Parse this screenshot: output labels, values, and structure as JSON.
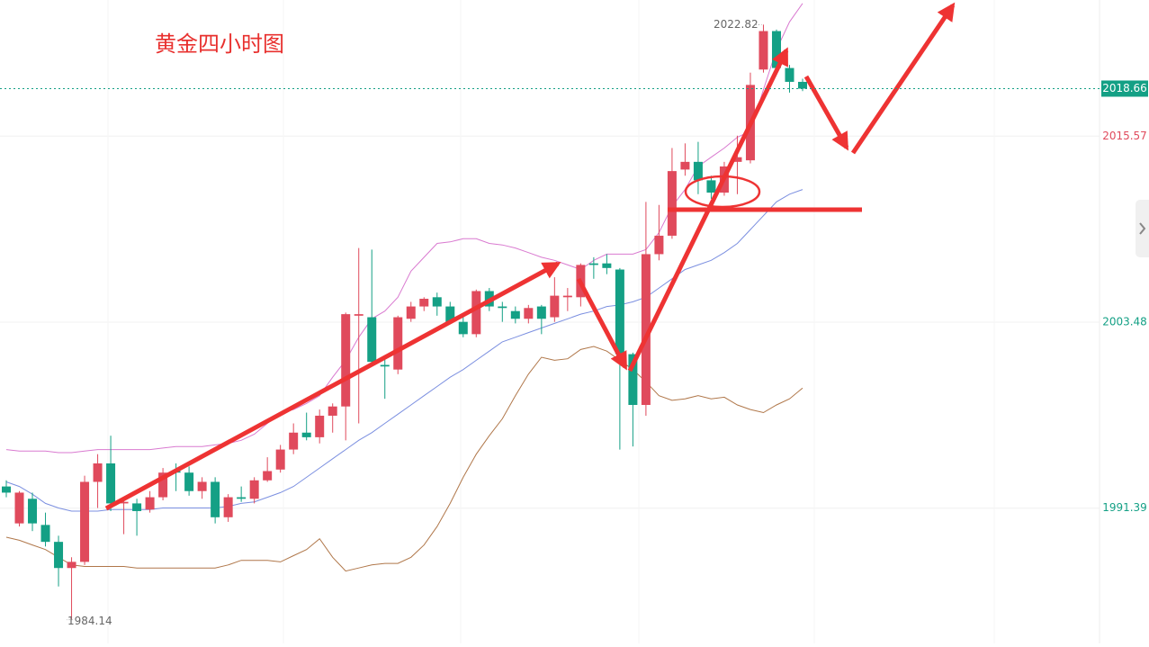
{
  "chart_data": {
    "type": "candlestick",
    "title": "黄金四小时图",
    "open": [
      1992.8,
      1990.4,
      1992.0,
      1990.3,
      1989.2,
      1987.5,
      1987.9,
      1993.1,
      1994.3,
      1991.7,
      1991.7,
      1991.3,
      1992.1,
      1993.8,
      1993.7,
      1992.5,
      1993.1,
      1990.8,
      1992.1,
      1992.0,
      1993.2,
      1993.9,
      1995.2,
      1996.3,
      1996.0,
      1997.4,
      1998.0,
      2003.9,
      2003.8,
      2000.7,
      2000.4,
      2003.7,
      2004.5,
      2005.1,
      2004.5,
      2003.5,
      2002.7,
      2005.5,
      2004.5,
      2004.2,
      2003.7,
      2004.5,
      2003.8,
      2005.1,
      2005.1,
      2007.3,
      2007.3,
      2006.9,
      2001.4,
      1998.1,
      2007.9,
      2009.1,
      2013.4,
      2013.9,
      2012.7,
      2011.9,
      2013.9,
      2014.0,
      2019.9,
      2022.4,
      2020.0,
      2019.1
    ],
    "high": [
      1993.2,
      1992.5,
      1992.4,
      1991.1,
      1989.6,
      1988.2,
      1993.5,
      1994.9,
      1996.1,
      1992.1,
      1992.0,
      1992.5,
      1994.0,
      1994.3,
      1994.1,
      1993.4,
      1993.4,
      1992.3,
      1992.8,
      1993.4,
      1994.7,
      1995.5,
      1996.9,
      1997.6,
      1997.8,
      1998.2,
      2004.1,
      2008.3,
      2008.2,
      2001.3,
      2003.9,
      2004.8,
      2005.1,
      2005.4,
      2004.8,
      2004.0,
      2005.6,
      2005.7,
      2004.8,
      2004.5,
      2004.6,
      2004.6,
      2006.4,
      2005.7,
      2007.3,
      2007.7,
      2007.9,
      2007.0,
      2001.5,
      2011.3,
      2011.1,
      2014.8,
      2015.1,
      2015.2,
      2013.0,
      2013.9,
      2015.6,
      2019.7,
      2022.82,
      2022.5,
      2020.2,
      2019.3
    ],
    "low": [
      1992.1,
      1990.2,
      1989.9,
      1988.9,
      1986.3,
      1984.14,
      1987.7,
      1991.4,
      1991.2,
      1989.7,
      1989.6,
      1991.1,
      1991.9,
      1992.5,
      1992.2,
      1992.0,
      1990.4,
      1990.5,
      1991.8,
      1991.7,
      1993.1,
      1993.7,
      1994.9,
      1995.8,
      1995.6,
      1996.3,
      1995.8,
      1996.9,
      2000.7,
      1998.5,
      2000.1,
      2003.5,
      2004.2,
      2003.9,
      2003.4,
      2002.5,
      2002.5,
      2004.2,
      2003.5,
      2003.4,
      2003.4,
      2002.7,
      2003.5,
      2004.2,
      2004.5,
      2006.3,
      2006.6,
      1995.2,
      1995.4,
      1997.4,
      2007.5,
      2008.9,
      2013.0,
      2011.8,
      2011.5,
      2011.7,
      2011.8,
      2013.8,
      2019.7,
      2019.7,
      2018.4,
      2018.5
    ],
    "close": [
      1992.4,
      1992.4,
      1990.4,
      1989.2,
      1987.5,
      1987.9,
      1993.1,
      1994.3,
      1991.7,
      1991.8,
      1991.2,
      1992.1,
      1993.7,
      1993.7,
      1992.5,
      1993.1,
      1990.8,
      1992.1,
      1992.0,
      1993.2,
      1993.8,
      1995.2,
      1996.3,
      1996.0,
      1997.4,
      1998.0,
      2004.0,
      2004.0,
      2000.9,
      2000.6,
      2003.8,
      2004.5,
      2005.0,
      2004.5,
      2003.5,
      2002.7,
      2005.5,
      2004.5,
      2004.4,
      2003.7,
      2004.4,
      2003.7,
      2005.2,
      2005.2,
      2007.2,
      2007.2,
      2007.0,
      2001.4,
      1998.1,
      2007.9,
      2009.1,
      2013.3,
      2013.9,
      2012.7,
      2011.9,
      2013.6,
      2014.2,
      2018.9,
      2022.4,
      2020.0,
      2019.1,
      2018.66
    ],
    "up_color": "#e04a5c",
    "down_color": "#14a085",
    "bands": [
      {
        "color": "#d97ad0",
        "values": [
          1995.2,
          1995.1,
          1995.1,
          1995.1,
          1995.0,
          1995.0,
          1995.1,
          1995.2,
          1995.2,
          1995.2,
          1995.2,
          1995.2,
          1995.3,
          1995.4,
          1995.4,
          1995.4,
          1995.5,
          1995.6,
          1995.8,
          1996.2,
          1996.9,
          1997.6,
          1997.8,
          1998.2,
          1998.7,
          1999.9,
          2001.0,
          2002.5,
          2003.7,
          2004.2,
          2005.1,
          2006.8,
          2007.7,
          2008.6,
          2008.7,
          2008.9,
          2008.9,
          2008.6,
          2008.5,
          2008.3,
          2008.0,
          2007.7,
          2007.5,
          2007.2,
          2006.9,
          2007.5,
          2007.9,
          2007.9,
          2007.9,
          2008.2,
          2009.3,
          2011.0,
          2012.1,
          2013.6,
          2014.2,
          2014.8,
          2015.5,
          2015.9,
          2018.6,
          2021.2,
          2023.0,
          2024.2
        ]
      },
      {
        "color": "#7b8fe0",
        "values": [
          1993.1,
          1992.8,
          1992.3,
          1991.7,
          1991.4,
          1991.2,
          1991.2,
          1991.2,
          1991.3,
          1991.3,
          1991.3,
          1991.3,
          1991.4,
          1991.4,
          1991.4,
          1991.4,
          1991.4,
          1991.5,
          1991.7,
          1991.8,
          1992.1,
          1992.4,
          1992.8,
          1993.4,
          1994.0,
          1994.6,
          1995.2,
          1995.8,
          1996.3,
          1996.9,
          1997.5,
          1998.1,
          1998.7,
          1999.3,
          1999.9,
          2000.4,
          2001.0,
          2001.6,
          2002.2,
          2002.5,
          2002.8,
          2003.1,
          2003.4,
          2003.7,
          2004.0,
          2004.2,
          2004.5,
          2004.6,
          2004.8,
          2005.1,
          2005.7,
          2006.3,
          2006.9,
          2007.2,
          2007.5,
          2008.0,
          2008.6,
          2009.5,
          2010.4,
          2011.3,
          2011.8,
          2012.1
        ]
      },
      {
        "color": "#b0774a",
        "values": [
          1989.5,
          1989.3,
          1989.0,
          1988.7,
          1988.2,
          1987.7,
          1987.6,
          1987.6,
          1987.6,
          1987.6,
          1987.5,
          1987.5,
          1987.5,
          1987.5,
          1987.5,
          1987.5,
          1987.5,
          1987.7,
          1988.0,
          1988.0,
          1988.0,
          1987.9,
          1988.3,
          1988.7,
          1989.4,
          1988.2,
          1987.3,
          1987.5,
          1987.7,
          1987.8,
          1987.8,
          1988.2,
          1989.0,
          1990.2,
          1991.7,
          1993.4,
          1994.9,
          1996.1,
          1997.2,
          1998.7,
          2000.1,
          2001.2,
          2001.0,
          2001.1,
          2001.7,
          2001.9,
          2001.6,
          2001.0,
          2000.4,
          1999.6,
          1998.7,
          1998.4,
          1998.5,
          1998.7,
          1998.5,
          1998.6,
          1998.1,
          1997.8,
          1997.6,
          1998.1,
          1998.5,
          1999.2
        ]
      }
    ],
    "current_price": 2018.66,
    "current_price_color": "#14a085",
    "ylim": [
      1982.6,
      2024.42
    ],
    "yticks": [
      1991.39,
      2003.48,
      2015.57
    ],
    "ytick_colors": [
      "#14a085",
      "#14a085",
      "#e04a5c"
    ],
    "grid": true
  }
}
